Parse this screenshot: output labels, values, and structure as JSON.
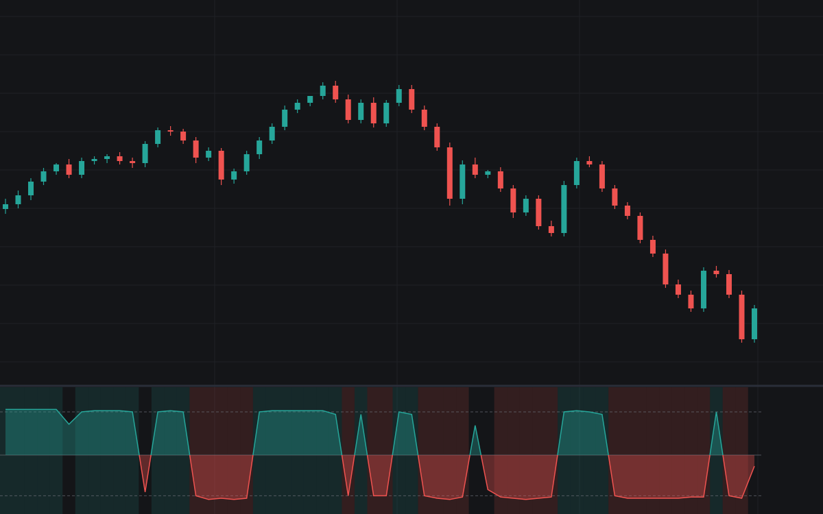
{
  "chart_data": [
    {
      "type": "candlestick",
      "up_color": "#26a69a",
      "down_color": "#ef5350",
      "grid": true,
      "ylim": [
        40,
        600
      ],
      "open": [
        295,
        302,
        315,
        335,
        350,
        360,
        345,
        365,
        368,
        372,
        365,
        362,
        390,
        410,
        408,
        395,
        370,
        380,
        338,
        350,
        375,
        395,
        415,
        440,
        450,
        460,
        475,
        455,
        425,
        450,
        420,
        450,
        470,
        440,
        415,
        385,
        310,
        360,
        345,
        350,
        325,
        290,
        310,
        270,
        260,
        330,
        365,
        360,
        325,
        300,
        285,
        250,
        230,
        185,
        170,
        150,
        205,
        200,
        170,
        105
      ],
      "high": [
        310,
        322,
        340,
        355,
        362,
        368,
        370,
        372,
        375,
        378,
        370,
        394,
        414,
        416,
        412,
        400,
        385,
        384,
        354,
        380,
        400,
        420,
        446,
        455,
        460,
        480,
        482,
        462,
        455,
        458,
        454,
        476,
        476,
        446,
        420,
        392,
        366,
        370,
        352,
        356,
        330,
        315,
        315,
        278,
        336,
        370,
        372,
        365,
        330,
        305,
        290,
        256,
        236,
        192,
        176,
        210,
        212,
        206,
        176,
        155
      ],
      "low": [
        288,
        296,
        308,
        330,
        345,
        340,
        340,
        360,
        362,
        360,
        355,
        356,
        385,
        402,
        390,
        362,
        365,
        330,
        332,
        345,
        368,
        390,
        410,
        435,
        445,
        455,
        450,
        420,
        420,
        414,
        415,
        445,
        435,
        410,
        380,
        300,
        302,
        340,
        340,
        320,
        282,
        285,
        265,
        255,
        255,
        325,
        356,
        320,
        295,
        280,
        245,
        225,
        180,
        165,
        145,
        145,
        195,
        165,
        100,
        100
      ],
      "close": [
        302,
        315,
        335,
        350,
        360,
        345,
        365,
        368,
        372,
        365,
        362,
        390,
        410,
        408,
        395,
        370,
        380,
        338,
        350,
        375,
        395,
        415,
        440,
        450,
        460,
        475,
        455,
        425,
        450,
        420,
        450,
        470,
        440,
        415,
        385,
        310,
        360,
        345,
        350,
        325,
        290,
        310,
        270,
        260,
        330,
        365,
        360,
        325,
        300,
        285,
        250,
        230,
        185,
        170,
        150,
        205,
        200,
        170,
        105,
        150
      ]
    },
    {
      "type": "oscillator",
      "ylim": [
        0,
        100
      ],
      "levels": [
        80,
        45,
        12
      ],
      "up_color": "#26a69a",
      "down_color": "#ef5350",
      "values": [
        82,
        82,
        82,
        82,
        82,
        70,
        80,
        81,
        81,
        81,
        80,
        15,
        80,
        81,
        80,
        12,
        9,
        10,
        9,
        10,
        80,
        81,
        81,
        81,
        81,
        81,
        78,
        12,
        78,
        12,
        12,
        80,
        78,
        12,
        10,
        9,
        11,
        69,
        17,
        11,
        10,
        9,
        10,
        11,
        80,
        81,
        80,
        78,
        12,
        10,
        10,
        10,
        10,
        10,
        11,
        11,
        80,
        12,
        10,
        36
      ]
    }
  ]
}
